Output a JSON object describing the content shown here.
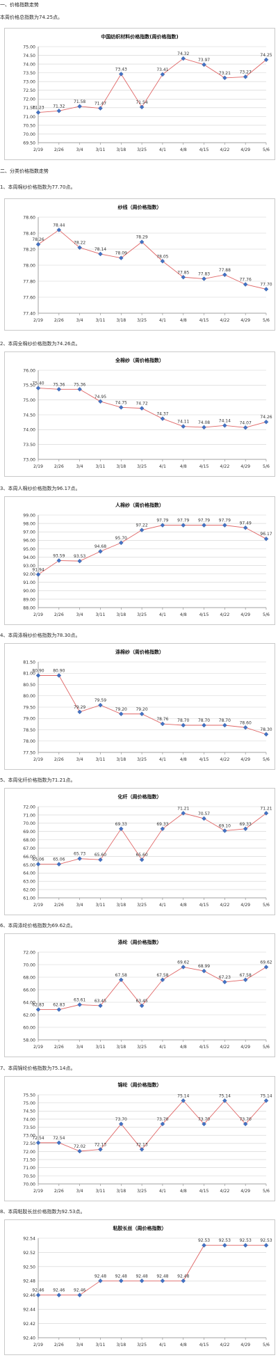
{
  "sections": [
    {
      "label": "一、价格指数走势"
    },
    {
      "label": "二、分类价格指数走势"
    }
  ],
  "subtitles": [
    {
      "label": "本周价格总指数为74.25点。"
    },
    {
      "label": "1、本周棉纱价格指数为77.70点。"
    },
    {
      "label": "2、本周全棉纱价格指数为74.26点。"
    },
    {
      "label": "3、本周人棉纱价格指数为96.17点。"
    },
    {
      "label": "4、本周涤棉纱价格指数为78.30点。"
    },
    {
      "label": "5、本周化纤价格指数为71.21点。"
    },
    {
      "label": "6、本周涤纶价格指数为69.62点。"
    },
    {
      "label": "7、本周锦纶价格指数为75.14点。"
    },
    {
      "label": "8、本周粘胶长丝价格指数为92.53点。"
    }
  ],
  "colors": {
    "line": "#e06666",
    "marker": "#4472c4",
    "grid": "#d0d0d0",
    "axis": "#888888"
  },
  "chart_data": [
    {
      "type": "line",
      "title": "中国纺织材料价格指数(周价格指数)",
      "categories": [
        "2/19",
        "2/26",
        "3/4",
        "3/11",
        "3/18",
        "3/25",
        "4/1",
        "4/8",
        "4/15",
        "4/22",
        "4/29",
        "5/6"
      ],
      "values": [
        71.23,
        71.32,
        71.58,
        71.47,
        73.43,
        71.54,
        73.41,
        74.32,
        73.97,
        73.21,
        73.27,
        74.25
      ],
      "yticks": [
        "75.00",
        "74.50",
        "74.00",
        "73.50",
        "73.00",
        "72.50",
        "72.00",
        "71.50",
        "71.00",
        "70.50",
        "70.00",
        "69.50"
      ],
      "ylim": [
        69.5,
        75.0
      ]
    },
    {
      "type": "line",
      "title": "纱线（周价格指数）",
      "categories": [
        "2/19",
        "2/26",
        "3/4",
        "3/11",
        "3/18",
        "3/25",
        "4/1",
        "4/8",
        "4/15",
        "4/22",
        "4/29",
        "5/6"
      ],
      "values": [
        78.26,
        78.44,
        78.22,
        78.14,
        78.09,
        78.29,
        78.05,
        77.85,
        77.83,
        77.88,
        77.76,
        77.7
      ],
      "yticks": [
        "78.60",
        "78.40",
        "78.20",
        "78.00",
        "77.80",
        "77.60",
        "77.40"
      ],
      "ylim": [
        77.4,
        78.6
      ]
    },
    {
      "type": "line",
      "title": "全棉纱（周价格指数）",
      "categories": [
        "2/19",
        "2/26",
        "3/4",
        "3/11",
        "3/18",
        "3/25",
        "4/1",
        "4/8",
        "4/15",
        "4/22",
        "4/29",
        "5/6"
      ],
      "values": [
        75.4,
        75.36,
        75.36,
        74.95,
        74.75,
        74.72,
        74.37,
        74.11,
        74.08,
        74.14,
        74.07,
        74.26
      ],
      "yticks": [
        "76.00",
        "75.50",
        "75.00",
        "74.50",
        "74.00",
        "73.50",
        "73.00"
      ],
      "ylim": [
        73.0,
        76.0
      ]
    },
    {
      "type": "line",
      "title": "人棉纱（周价格指数）",
      "categories": [
        "2/19",
        "2/26",
        "3/4",
        "3/11",
        "3/18",
        "3/25",
        "4/1",
        "4/8",
        "4/15",
        "4/22",
        "4/29",
        "5/6"
      ],
      "values": [
        91.94,
        93.59,
        93.53,
        94.68,
        95.7,
        97.22,
        97.79,
        97.79,
        97.79,
        97.79,
        97.49,
        96.17
      ],
      "yticks": [
        "99.00",
        "98.00",
        "97.00",
        "96.00",
        "95.00",
        "94.00",
        "93.00",
        "92.00",
        "91.00",
        "90.00",
        "89.00",
        "88.00"
      ],
      "ylim": [
        88.0,
        99.0
      ]
    },
    {
      "type": "line",
      "title": "涤棉纱（周价格指数）",
      "categories": [
        "2/19",
        "2/26",
        "3/4",
        "3/11",
        "3/18",
        "3/25",
        "4/1",
        "4/8",
        "4/15",
        "4/22",
        "4/29",
        "5/6"
      ],
      "values": [
        80.9,
        80.9,
        79.29,
        79.59,
        79.2,
        79.2,
        78.76,
        78.7,
        78.7,
        78.7,
        78.6,
        78.3
      ],
      "yticks": [
        "81.50",
        "81.00",
        "80.50",
        "80.00",
        "79.50",
        "79.00",
        "78.50",
        "78.00",
        "77.50"
      ],
      "ylim": [
        77.5,
        81.5
      ]
    },
    {
      "type": "line",
      "title": "化纤（周价格指数）",
      "categories": [
        "2/19",
        "2/26",
        "3/4",
        "3/11",
        "3/18",
        "3/25",
        "4/1",
        "4/8",
        "4/15",
        "4/22",
        "4/29",
        "5/6"
      ],
      "values": [
        65.06,
        65.06,
        65.73,
        65.6,
        69.33,
        65.6,
        69.33,
        71.21,
        70.57,
        69.1,
        69.33,
        71.21
      ],
      "yticks": [
        "72.00",
        "71.00",
        "70.00",
        "69.00",
        "68.00",
        "67.00",
        "66.00",
        "65.00",
        "64.00",
        "63.00",
        "62.00",
        "61.00"
      ],
      "ylim": [
        61.0,
        72.0
      ]
    },
    {
      "type": "line",
      "title": "涤纶（周价格指数）",
      "categories": [
        "2/19",
        "2/26",
        "3/4",
        "3/11",
        "3/18",
        "3/25",
        "4/1",
        "4/8",
        "4/15",
        "4/22",
        "4/29",
        "5/6"
      ],
      "values": [
        62.83,
        62.83,
        63.61,
        63.45,
        67.58,
        63.45,
        67.58,
        69.62,
        68.99,
        67.23,
        67.58,
        69.62
      ],
      "yticks": [
        "72.00",
        "70.00",
        "68.00",
        "66.00",
        "64.00",
        "62.00",
        "60.00",
        "58.00"
      ],
      "ylim": [
        58.0,
        72.0
      ]
    },
    {
      "type": "line",
      "title": "锦纶（周价格指数）",
      "categories": [
        "2/19",
        "2/26",
        "3/4",
        "3/11",
        "3/18",
        "3/25",
        "4/1",
        "4/8",
        "4/15",
        "4/22",
        "4/29",
        "5/6"
      ],
      "values": [
        72.54,
        72.54,
        72.02,
        72.13,
        73.7,
        72.13,
        73.7,
        75.14,
        73.7,
        75.14,
        73.7,
        75.14
      ],
      "yticks": [
        "75.50",
        "75.00",
        "74.50",
        "74.00",
        "73.50",
        "73.00",
        "72.50",
        "72.00",
        "71.50",
        "71.00",
        "70.50",
        "70.00"
      ],
      "ylim": [
        70.0,
        75.5
      ]
    },
    {
      "type": "line",
      "title": "粘胶长丝（周价格指数）",
      "categories": [
        "2/19",
        "2/26",
        "3/4",
        "3/11",
        "3/18",
        "3/25",
        "4/1",
        "4/8",
        "4/15",
        "4/22",
        "4/29",
        "5/6"
      ],
      "values": [
        92.46,
        92.46,
        92.46,
        92.48,
        92.48,
        92.48,
        92.48,
        92.48,
        92.53,
        92.53,
        92.53,
        92.53
      ],
      "yticks": [
        "92.54",
        "92.52",
        "92.50",
        "92.48",
        "92.46",
        "92.44",
        "92.42",
        "92.40"
      ],
      "ylim": [
        92.4,
        92.54
      ]
    }
  ]
}
